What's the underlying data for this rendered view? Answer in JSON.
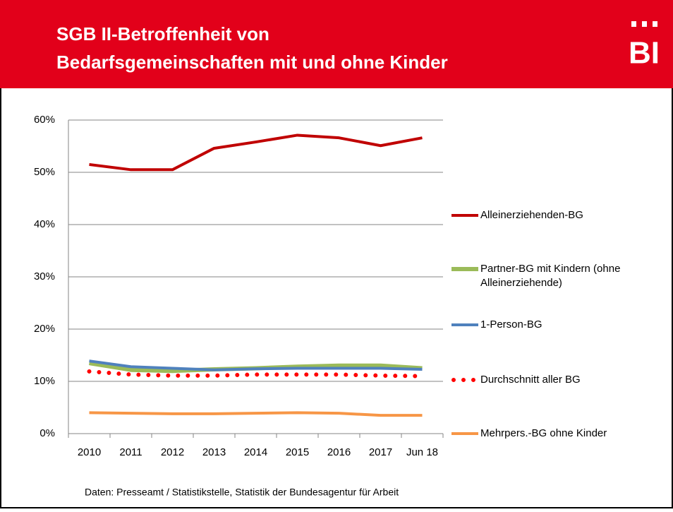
{
  "header": {
    "title_lines": [
      "SGB II-Betroffenheit von",
      "Bedarfsgemeinschaften  mit und ohne Kinder"
    ],
    "logo": "BI"
  },
  "chart_data": {
    "type": "line",
    "categories": [
      "2010",
      "2011",
      "2012",
      "2013",
      "2014",
      "2015",
      "2016",
      "2017",
      "Jun 18"
    ],
    "series": [
      {
        "name": "Alleinerziehenden-BG",
        "color": "#c00000",
        "values": [
          51.5,
          50.5,
          50.5,
          54.6,
          55.8,
          57.1,
          56.6,
          55.1,
          56.6
        ]
      },
      {
        "name": "Partner-BG mit Kindern (ohne Alleinerziehende)",
        "color": "#9bbb59",
        "values": [
          13.5,
          12.2,
          12.0,
          12.3,
          12.5,
          12.8,
          13.0,
          13.0,
          12.5
        ]
      },
      {
        "name": "1-Person-BG",
        "color": "#4f81bd",
        "values": [
          13.9,
          12.8,
          12.5,
          12.2,
          12.4,
          12.5,
          12.5,
          12.5,
          12.3
        ]
      },
      {
        "name": "Durchschnitt aller BG",
        "color": "#ff0000",
        "dotted": true,
        "values": [
          11.9,
          11.3,
          11.1,
          11.1,
          11.3,
          11.3,
          11.3,
          11.1,
          11.0
        ]
      },
      {
        "name": "Mehrpers.-BG ohne Kinder",
        "color": "#f79646",
        "values": [
          4.0,
          3.9,
          3.8,
          3.8,
          3.9,
          4.0,
          3.9,
          3.5,
          3.5
        ]
      }
    ],
    "ylim": [
      0,
      60
    ],
    "yticks": [
      {
        "value": 0,
        "label": "0%"
      },
      {
        "value": 10,
        "label": "10%"
      },
      {
        "value": 20,
        "label": "20%"
      },
      {
        "value": 30,
        "label": "30%"
      },
      {
        "value": 40,
        "label": "40%"
      },
      {
        "value": 50,
        "label": "50%"
      },
      {
        "value": 60,
        "label": "60%"
      }
    ],
    "grid": true
  },
  "footer": {
    "source": "Daten: Presseamt / Statistikstelle, Statistik der Bundesagentur für Arbeit"
  }
}
